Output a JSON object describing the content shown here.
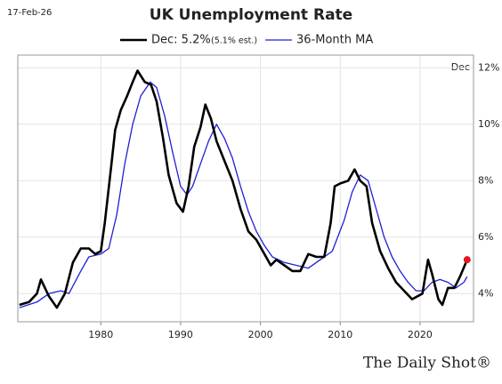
{
  "chart_data": {
    "type": "line",
    "date": "17-Feb-26",
    "title": "UK Unemployment Rate",
    "legend_note": "(5.1% est.)",
    "corner_label": "Dec",
    "source": "The Daily Shot®",
    "xlim": [
      1969.6,
      2026.7
    ],
    "xticks": [
      1980,
      1990,
      2000,
      2010,
      2020
    ],
    "ylim": [
      3,
      12.45
    ],
    "yticks": [
      {
        "value": 4,
        "label": "4%"
      },
      {
        "value": 6,
        "label": "6%"
      },
      {
        "value": 8,
        "label": "8%"
      },
      {
        "value": 10,
        "label": "10%"
      },
      {
        "value": 12,
        "label": "12%"
      }
    ],
    "grid": true,
    "series": [
      {
        "name": "Dec: 5.2%",
        "color": "#000000",
        "width": 2.6,
        "x": [
          1969.8,
          1971,
          1972,
          1972.5,
          1973.5,
          1974.5,
          1975.5,
          1976.5,
          1977.5,
          1978.5,
          1979.3,
          1980,
          1980.5,
          1981.3,
          1981.8,
          1982.5,
          1983.3,
          1984,
          1984.6,
          1985.5,
          1986.3,
          1987,
          1987.8,
          1988.5,
          1989.5,
          1990.3,
          1991,
          1991.7,
          1992.5,
          1993.1,
          1993.8,
          1994.5,
          1995.5,
          1996.5,
          1997.5,
          1998.5,
          1999.5,
          2000.5,
          2001.3,
          2002,
          2003,
          2004,
          2005,
          2006,
          2007,
          2008,
          2008.8,
          2009.3,
          2010,
          2011,
          2011.8,
          2012.5,
          2013.3,
          2014,
          2015,
          2016,
          2017,
          2018,
          2019,
          2020.3,
          2021,
          2021.5,
          2022.3,
          2022.8,
          2023.5,
          2024.3,
          2025,
          2025.9
        ],
        "values": [
          3.6,
          3.7,
          4.0,
          4.5,
          3.9,
          3.5,
          4.0,
          5.1,
          5.6,
          5.6,
          5.4,
          5.5,
          6.5,
          8.5,
          9.8,
          10.5,
          11.0,
          11.5,
          11.9,
          11.5,
          11.4,
          10.8,
          9.5,
          8.2,
          7.2,
          6.9,
          7.8,
          9.2,
          9.9,
          10.7,
          10.2,
          9.4,
          8.7,
          8.0,
          7.0,
          6.2,
          5.9,
          5.4,
          5.0,
          5.2,
          5.0,
          4.8,
          4.8,
          5.4,
          5.3,
          5.3,
          6.5,
          7.8,
          7.9,
          8.0,
          8.4,
          8.0,
          7.8,
          6.5,
          5.5,
          4.9,
          4.4,
          4.1,
          3.8,
          4.0,
          5.2,
          4.7,
          3.8,
          3.6,
          4.2,
          4.2,
          4.6,
          5.2
        ]
      },
      {
        "name": "36-Month MA",
        "color": "#1f1fd6",
        "width": 1.3,
        "x": [
          1969.8,
          1972,
          1973.5,
          1975,
          1976,
          1977.5,
          1978.5,
          1980,
          1981,
          1982,
          1983,
          1984,
          1985,
          1986.2,
          1987,
          1988,
          1989,
          1990,
          1990.8,
          1991.5,
          1992.5,
          1993.5,
          1994.5,
          1995.5,
          1996.5,
          1997.5,
          1998.5,
          1999.5,
          2000.5,
          2001.5,
          2003,
          2004.5,
          2006,
          2007.5,
          2009,
          2010.5,
          2011.5,
          2012.5,
          2013.5,
          2014.5,
          2015.5,
          2016.5,
          2017.5,
          2018.5,
          2019.5,
          2020.5,
          2021.5,
          2022.5,
          2023.5,
          2024.5,
          2025.5,
          2025.9
        ],
        "values": [
          3.5,
          3.7,
          4.0,
          4.1,
          4.0,
          4.8,
          5.3,
          5.4,
          5.6,
          6.8,
          8.6,
          10.0,
          11.0,
          11.5,
          11.3,
          10.3,
          9.0,
          7.8,
          7.5,
          7.8,
          8.6,
          9.4,
          10.0,
          9.5,
          8.8,
          7.8,
          6.9,
          6.2,
          5.7,
          5.3,
          5.1,
          5.0,
          4.9,
          5.2,
          5.5,
          6.6,
          7.6,
          8.2,
          8.0,
          7.0,
          6.0,
          5.3,
          4.8,
          4.4,
          4.1,
          4.1,
          4.4,
          4.5,
          4.4,
          4.2,
          4.4,
          4.6
        ]
      }
    ],
    "end_marker_color": "#e8141c"
  }
}
